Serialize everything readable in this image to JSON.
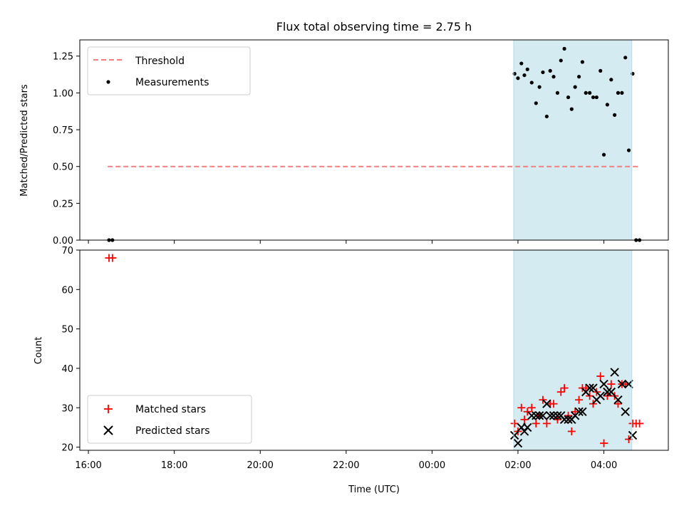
{
  "chart_data": [
    {
      "type": "scatter",
      "title": "Flux total observing time = 2.75 h",
      "ylabel": "Matched/Predicted stars",
      "xlabel": "",
      "xlim": [
        15.8,
        29.5
      ],
      "ylim": [
        0,
        1.36
      ],
      "yticks": [
        0.0,
        0.25,
        0.5,
        0.75,
        1.0,
        1.25
      ],
      "ytick_labels": [
        "0.00",
        "0.25",
        "0.50",
        "0.75",
        "1.00",
        "1.25"
      ],
      "shaded_span": [
        25.9,
        28.65
      ],
      "shade_color": "#d4ebf1",
      "legend_position": "upper-left",
      "series": [
        {
          "name": "Threshold",
          "kind": "line",
          "style": "dashed",
          "color": "#f08080",
          "x": [
            16.45,
            28.85
          ],
          "y": [
            0.5,
            0.5
          ]
        },
        {
          "name": "Measurements",
          "kind": "points",
          "marker": "dot",
          "color": "#000000",
          "x": [
            16.48,
            16.56,
            25.92,
            26.0,
            26.08,
            26.15,
            26.22,
            26.32,
            26.42,
            26.5,
            26.58,
            26.67,
            26.75,
            26.83,
            26.92,
            27.0,
            27.08,
            27.17,
            27.25,
            27.33,
            27.42,
            27.5,
            27.58,
            27.67,
            27.75,
            27.83,
            27.92,
            28.0,
            28.08,
            28.17,
            28.25,
            28.33,
            28.42,
            28.5,
            28.58,
            28.67,
            28.75,
            28.83
          ],
          "y": [
            0.0,
            0.0,
            1.13,
            1.1,
            1.2,
            1.12,
            1.16,
            1.07,
            0.93,
            1.04,
            1.14,
            0.84,
            1.15,
            1.11,
            1.0,
            1.22,
            1.3,
            0.97,
            0.89,
            1.04,
            1.11,
            1.21,
            1.0,
            1.0,
            0.97,
            0.97,
            1.15,
            0.58,
            0.92,
            1.09,
            0.85,
            1.0,
            1.0,
            1.24,
            0.61,
            1.13,
            0.0,
            0.0
          ]
        }
      ]
    },
    {
      "type": "scatter",
      "title": "",
      "ylabel": "Count",
      "xlabel": "Time (UTC)",
      "xlim": [
        15.8,
        29.5
      ],
      "ylim": [
        19.2,
        70
      ],
      "yticks": [
        20,
        30,
        40,
        50,
        60,
        70
      ],
      "ytick_labels": [
        "20",
        "30",
        "40",
        "50",
        "60",
        "70"
      ],
      "xticks": [
        16,
        18,
        20,
        22,
        24,
        26,
        28
      ],
      "xtick_labels": [
        "16:00",
        "18:00",
        "20:00",
        "22:00",
        "00:00",
        "02:00",
        "04:00"
      ],
      "shaded_span": [
        25.9,
        28.65
      ],
      "shade_color": "#d4ebf1",
      "legend_position": "lower-left",
      "series": [
        {
          "name": "Matched stars",
          "kind": "points",
          "marker": "plus",
          "color": "#ff0000",
          "x": [
            16.48,
            16.56,
            25.92,
            26.0,
            26.08,
            26.15,
            26.22,
            26.32,
            26.42,
            26.5,
            26.58,
            26.67,
            26.75,
            26.83,
            26.92,
            27.0,
            27.08,
            27.17,
            27.25,
            27.33,
            27.42,
            27.5,
            27.58,
            27.67,
            27.75,
            27.83,
            27.92,
            28.0,
            28.08,
            28.17,
            28.25,
            28.33,
            28.42,
            28.5,
            28.58,
            28.67,
            28.75,
            28.83
          ],
          "y": [
            68,
            68,
            26,
            24,
            30,
            27,
            29,
            30,
            26,
            28,
            32,
            26,
            31,
            31,
            27,
            34,
            35,
            28,
            24,
            29,
            32,
            35,
            35,
            33,
            31,
            34,
            38,
            21,
            33,
            36,
            33,
            31,
            36,
            36,
            22,
            26,
            26,
            26
          ]
        },
        {
          "name": "Predicted stars",
          "kind": "points",
          "marker": "x",
          "color": "#000000",
          "x": [
            25.92,
            26.0,
            26.08,
            26.15,
            26.22,
            26.32,
            26.42,
            26.5,
            26.58,
            26.67,
            26.75,
            26.83,
            26.92,
            27.0,
            27.08,
            27.17,
            27.25,
            27.33,
            27.42,
            27.5,
            27.58,
            27.67,
            27.75,
            27.83,
            27.92,
            28.0,
            28.08,
            28.17,
            28.25,
            28.33,
            28.42,
            28.5,
            28.58,
            28.67
          ],
          "y": [
            23,
            21,
            25,
            24,
            25,
            28,
            28,
            28,
            28,
            31,
            28,
            28,
            28,
            28,
            27,
            27,
            27,
            28,
            29,
            29,
            34,
            35,
            35,
            32,
            33,
            36,
            34,
            34,
            39,
            32,
            36,
            29,
            36,
            23
          ]
        }
      ]
    }
  ]
}
